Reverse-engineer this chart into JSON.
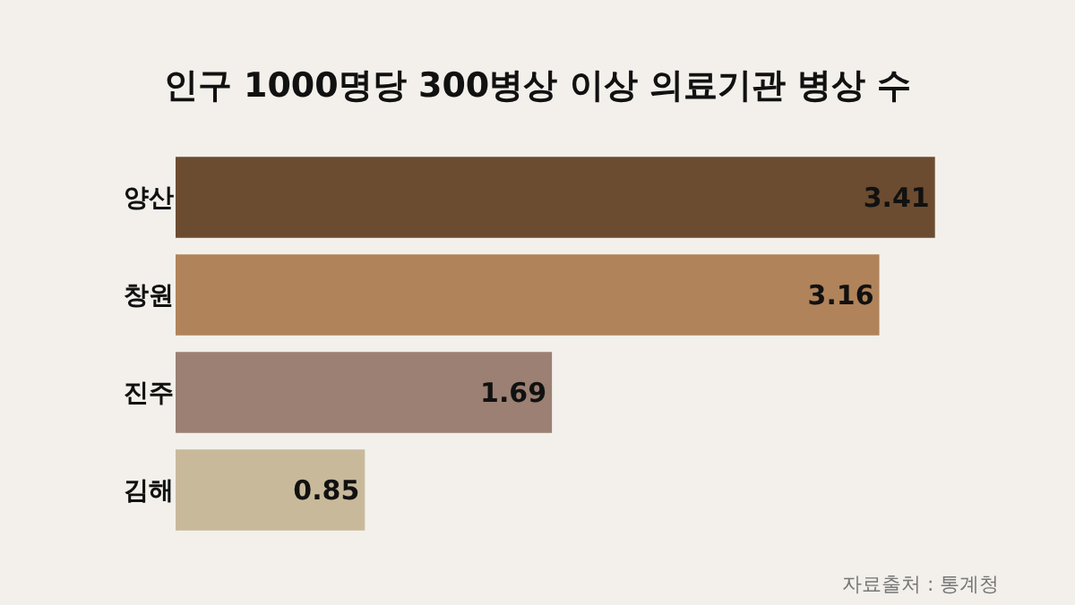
{
  "chart_data": {
    "type": "bar",
    "orientation": "horizontal",
    "title": "인구 1000명당 300병상 이상 의료기관 병상 수",
    "categories": [
      "양산",
      "창원",
      "진주",
      "김해"
    ],
    "values": [
      3.41,
      3.16,
      1.69,
      0.85
    ],
    "colors": [
      "#6b4c30",
      "#b0835a",
      "#9b8073",
      "#c9b99b"
    ],
    "data_labels": true,
    "annotations": [
      "자료출처 : 통계청"
    ]
  }
}
